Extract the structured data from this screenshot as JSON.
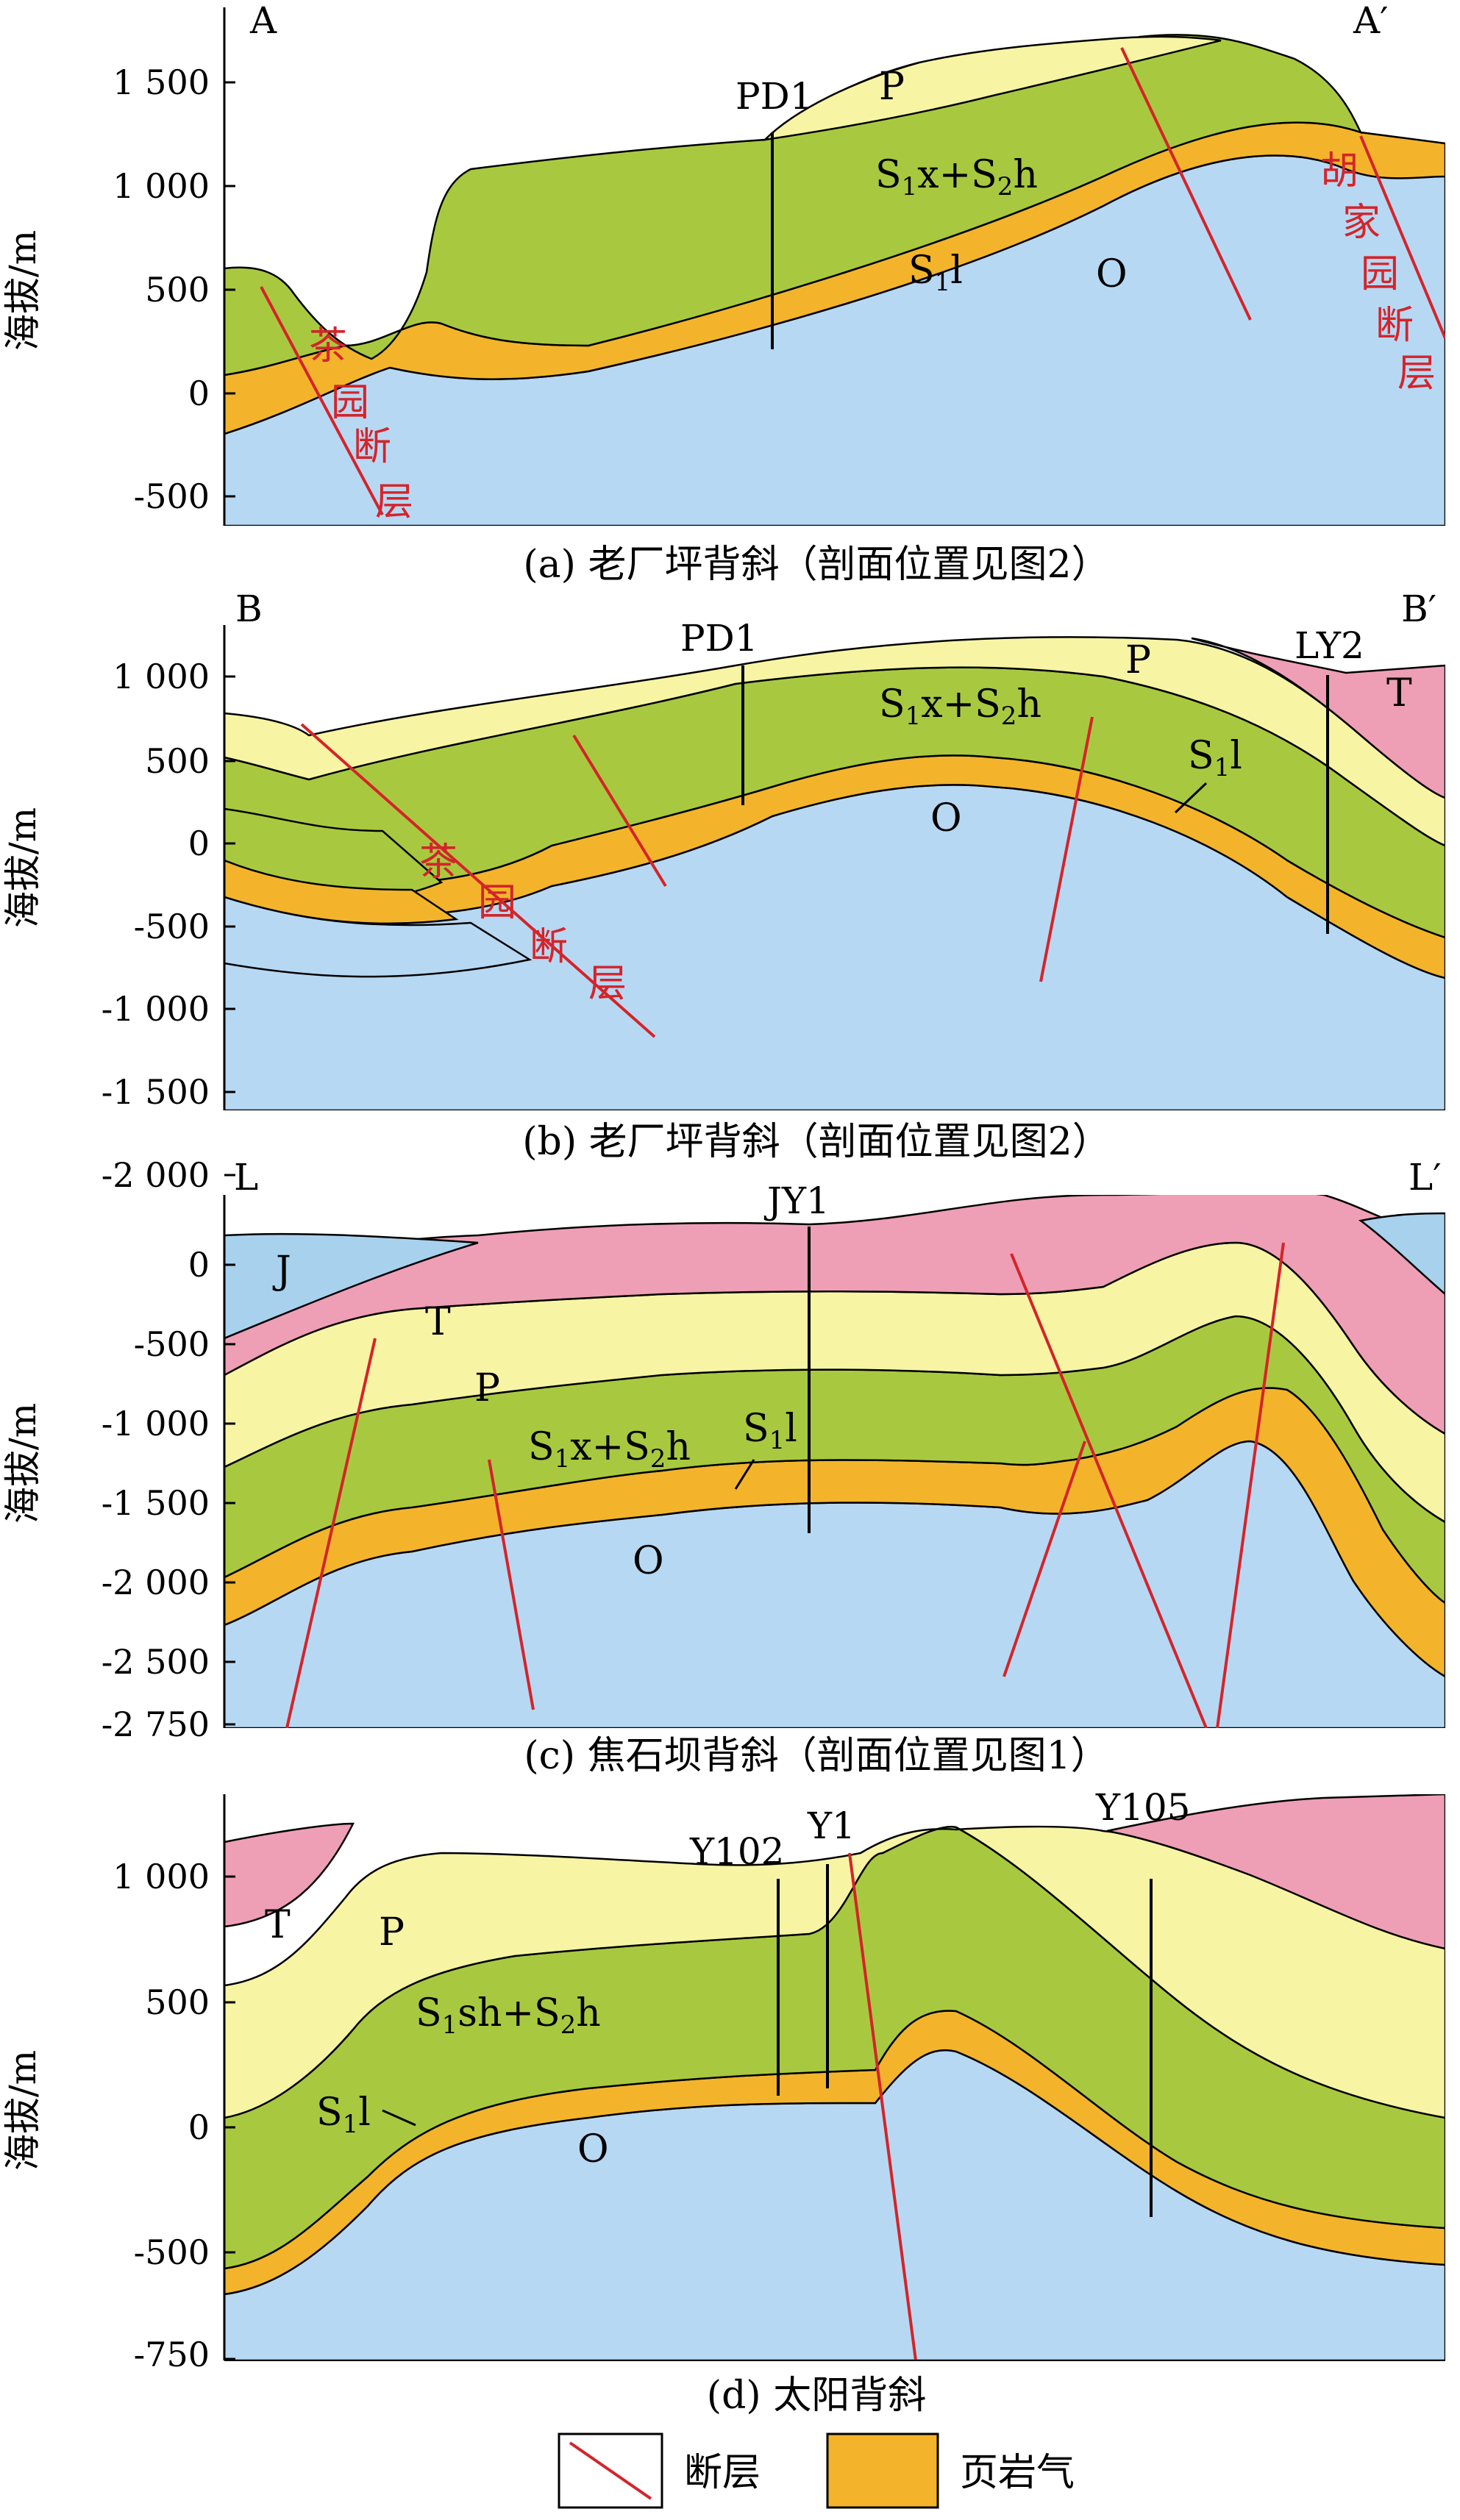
{
  "colors": {
    "T": "#ee9fb5",
    "P": "#f7f4a4",
    "S1x": "#a8c93f",
    "S1l": "#f3b42b",
    "O": "#b7d8f3",
    "J": "#a8d1ee",
    "fault": "#d4242a",
    "well": "#000000"
  },
  "y_axis_label": "海拔/m",
  "panels": [
    {
      "caption": "(a) 老厂坪背斜（剖面位置见图2）",
      "left_label": "A",
      "right_label": "A′",
      "ticks": [
        "1 500",
        "1 000",
        "500",
        "0",
        "-500"
      ],
      "wells": [
        "PD1"
      ],
      "formations": {
        "P": "P",
        "S1x": "S",
        "S1x_sub1": "1",
        "S1x_mid": "x+S",
        "S1x_sub2": "2",
        "S1x_end": "h",
        "S1l": "S",
        "S1l_sub": "1",
        "S1l_end": "l",
        "O": "O"
      },
      "faults": [
        "茶",
        "园",
        "断",
        "层",
        "胡",
        "家",
        "园",
        "断",
        "层"
      ]
    },
    {
      "caption": "(b) 老厂坪背斜（剖面位置见图2）",
      "left_label": "B",
      "right_label": "B′",
      "ticks": [
        "1 000",
        "500",
        "0",
        "-500",
        "-1 000",
        "-1 500",
        "-2 000"
      ],
      "wells": [
        "PD1",
        "LY2"
      ],
      "formations": {
        "P": "P",
        "T": "T",
        "S1x": "S",
        "S1x_sub1": "1",
        "S1x_mid": "x+S",
        "S1x_sub2": "2",
        "S1x_end": "h",
        "S1l": "S",
        "S1l_sub": "1",
        "S1l_end": "l",
        "O": "O"
      },
      "faults": [
        "茶",
        "园",
        "断",
        "层"
      ]
    },
    {
      "caption": "(c) 焦石坝背斜（剖面位置见图1）",
      "left_label": "L",
      "right_label": "L′",
      "ticks": [
        "0",
        "-500",
        "-1 000",
        "-1 500",
        "-2 000",
        "-2 500",
        "-2 750"
      ],
      "wells": [
        "JY1"
      ],
      "formations": {
        "J": "J",
        "T": "T",
        "P": "P",
        "S1x": "S",
        "S1x_sub1": "1",
        "S1x_mid": "x+S",
        "S1x_sub2": "2",
        "S1x_end": "h",
        "S1l": "S",
        "S1l_sub": "1",
        "S1l_end": "l",
        "O": "O"
      }
    },
    {
      "caption": "(d) 太阳背斜",
      "ticks": [
        "1 000",
        "500",
        "0",
        "-500",
        "-750"
      ],
      "wells": [
        "Y102",
        "Y1",
        "Y105"
      ],
      "formations": {
        "T": "T",
        "P": "P",
        "S1x": "S",
        "S1x_sub1": "1",
        "S1x_mid": "sh+S",
        "S1x_sub2": "2",
        "S1x_end": "h",
        "S1l": "S",
        "S1l_sub": "1",
        "S1l_end": "l",
        "O": "O"
      }
    }
  ],
  "legend": {
    "fault_label": "断层",
    "shale_gas_label": "页岩气"
  }
}
